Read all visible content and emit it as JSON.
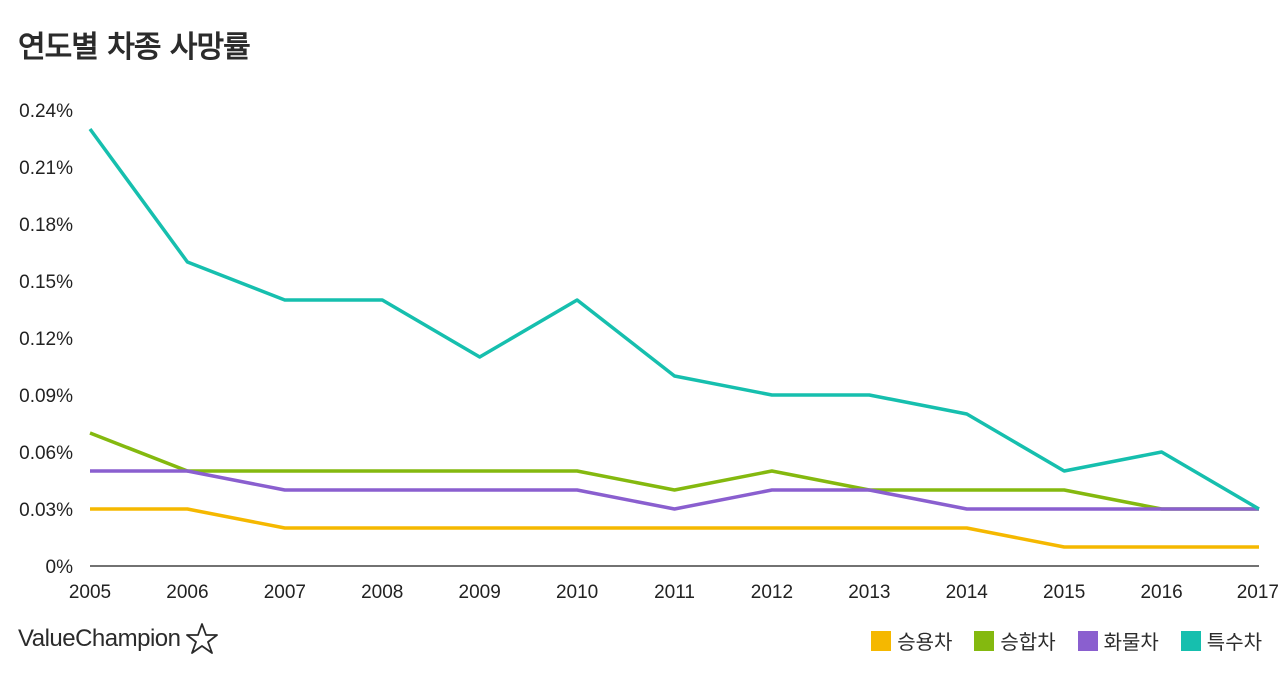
{
  "chart_data": {
    "type": "line",
    "title": "연도별 차종 사망률",
    "categories": [
      "2005",
      "2006",
      "2007",
      "2008",
      "2009",
      "2010",
      "2011",
      "2012",
      "2013",
      "2014",
      "2015",
      "2016",
      "2017"
    ],
    "y_ticks": [
      "0%",
      "0.03%",
      "0.06%",
      "0.09%",
      "0.12%",
      "0.15%",
      "0.18%",
      "0.21%",
      "0.24%"
    ],
    "ylim": [
      0,
      0.24
    ],
    "series": [
      {
        "name": "승용차",
        "color": "#f5b800",
        "values": [
          0.03,
          0.03,
          0.02,
          0.02,
          0.02,
          0.02,
          0.02,
          0.02,
          0.02,
          0.02,
          0.01,
          0.01,
          0.01
        ]
      },
      {
        "name": "승합차",
        "color": "#84b90f",
        "values": [
          0.07,
          0.05,
          0.05,
          0.05,
          0.05,
          0.05,
          0.04,
          0.05,
          0.04,
          0.04,
          0.04,
          0.03,
          0.03
        ]
      },
      {
        "name": "화물차",
        "color": "#8a5fcf",
        "values": [
          0.05,
          0.05,
          0.04,
          0.04,
          0.04,
          0.04,
          0.03,
          0.04,
          0.04,
          0.03,
          0.03,
          0.03,
          0.03
        ]
      },
      {
        "name": "특수차",
        "color": "#16bfae",
        "values": [
          0.23,
          0.16,
          0.14,
          0.14,
          0.11,
          0.14,
          0.1,
          0.09,
          0.09,
          0.08,
          0.05,
          0.06,
          0.03
        ]
      }
    ]
  },
  "brand": {
    "name": "ValueChampion",
    "icon": "star-outline-icon"
  }
}
